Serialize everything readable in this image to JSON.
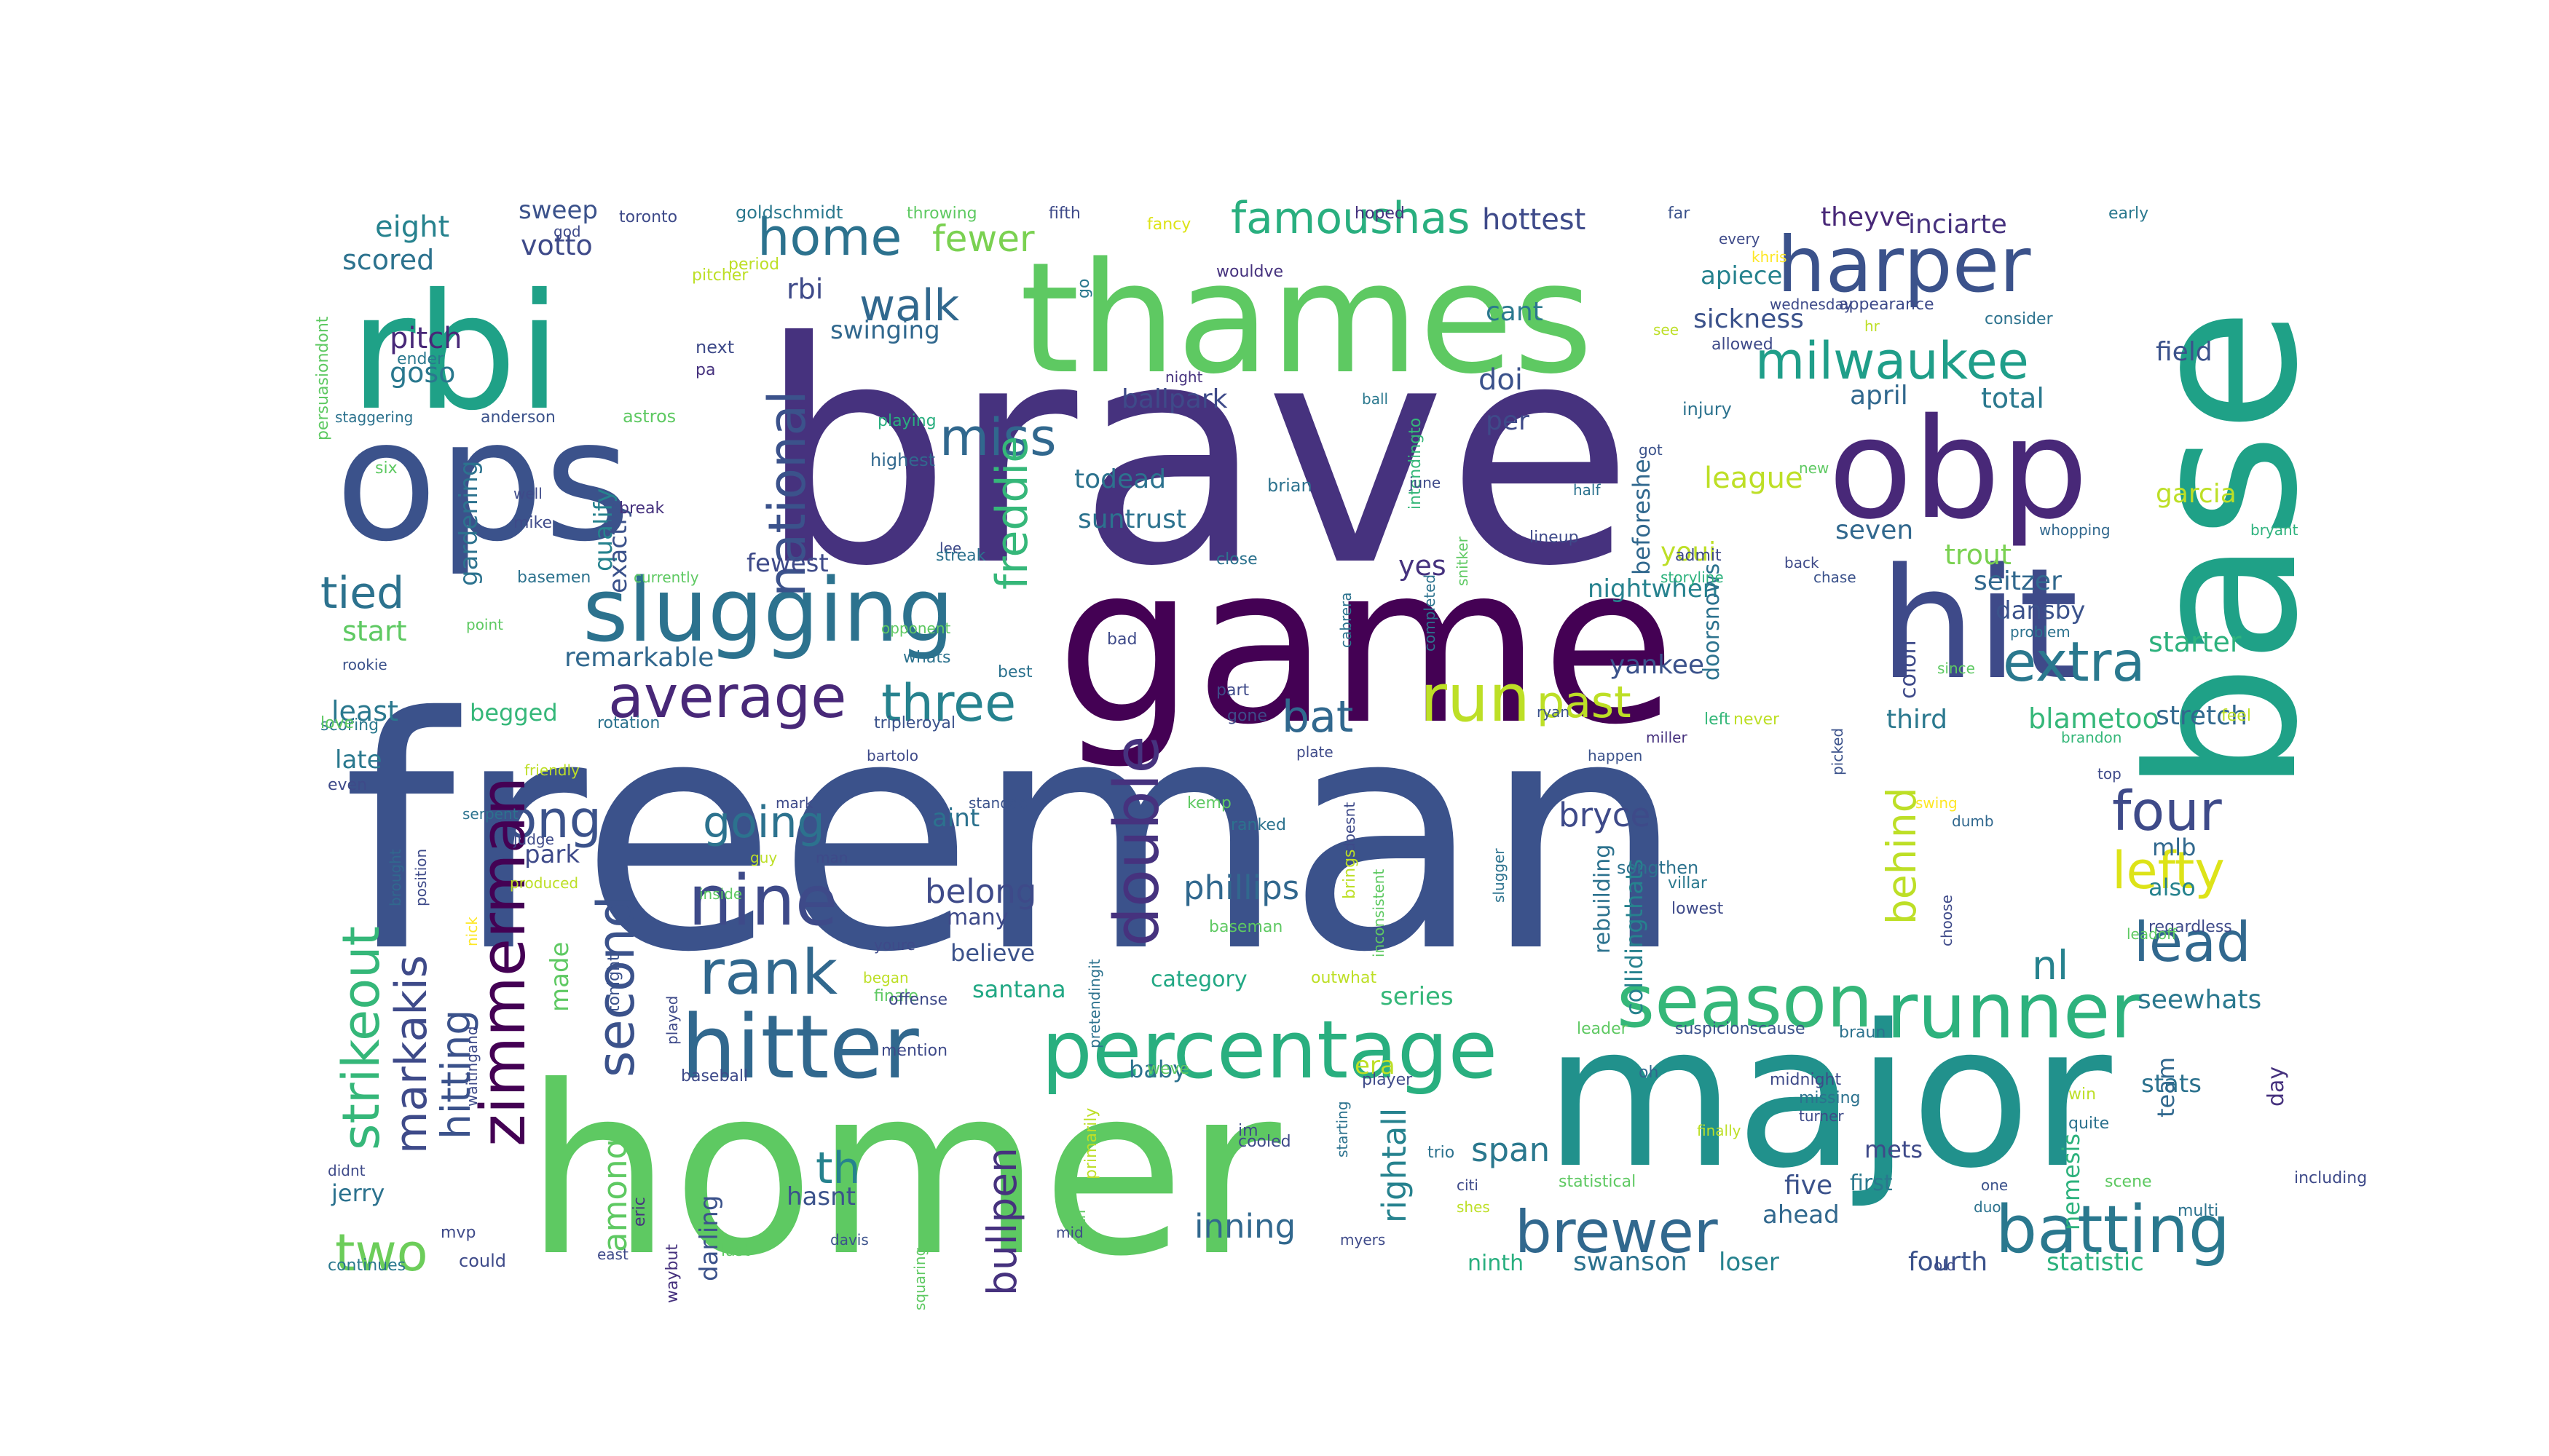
{
  "words": [
    {
      "t": "freeman",
      "c": "#3b528b"
    },
    {
      "t": "brave",
      "c": "#46327e"
    },
    {
      "t": "homer",
      "c": "#5ec962"
    },
    {
      "t": "major",
      "c": "#21918c"
    },
    {
      "t": "game",
      "c": "#440154"
    },
    {
      "t": "thames",
      "c": "#5ec962"
    },
    {
      "t": "base",
      "c": "#1fa187"
    },
    {
      "t": "ops",
      "c": "#3b528b"
    },
    {
      "t": "rbi",
      "c": "#1fa187"
    },
    {
      "t": "obp",
      "c": "#482878"
    },
    {
      "t": "hit",
      "c": "#3e4a89"
    },
    {
      "t": "harper",
      "c": "#3b528b"
    },
    {
      "t": "slugging",
      "c": "#2c728e"
    },
    {
      "t": "percentage",
      "c": "#29af7f"
    },
    {
      "t": "hitter",
      "c": "#31688e"
    },
    {
      "t": "runner",
      "c": "#2db27d"
    },
    {
      "t": "season",
      "c": "#35b779"
    },
    {
      "t": "batting",
      "c": "#2a788e"
    },
    {
      "t": "brewer",
      "c": "#31688e"
    },
    {
      "t": "nine",
      "c": "#3e4a89"
    },
    {
      "t": "rank",
      "c": "#31688e"
    },
    {
      "t": "average",
      "c": "#482878"
    },
    {
      "t": "milwaukee",
      "c": "#1f9e89"
    },
    {
      "t": "double",
      "c": "#46327e"
    },
    {
      "t": "long",
      "c": "#3b528b"
    },
    {
      "t": "run",
      "c": "#bddf26"
    },
    {
      "t": "extra",
      "c": "#2a788e"
    },
    {
      "t": "four",
      "c": "#3e4a89"
    },
    {
      "t": "lefty",
      "c": "#dde318"
    },
    {
      "t": "lead",
      "c": "#31688e"
    },
    {
      "t": "zimmerman",
      "c": "#440154"
    },
    {
      "t": "strikeout",
      "c": "#35b779"
    },
    {
      "t": "markakis",
      "c": "#3e4a89"
    },
    {
      "t": "second",
      "c": "#3b528b"
    },
    {
      "t": "national",
      "c": "#3b528b"
    },
    {
      "t": "home",
      "c": "#2c728e"
    },
    {
      "t": "walk",
      "c": "#31688e"
    },
    {
      "t": "miss",
      "c": "#31688e"
    },
    {
      "t": "three",
      "c": "#26828e"
    },
    {
      "t": "bat",
      "c": "#31688e"
    },
    {
      "t": "going",
      "c": "#2c728e"
    },
    {
      "t": "two",
      "c": "#6ccd5a"
    },
    {
      "t": "tied",
      "c": "#2c728e"
    },
    {
      "t": "past",
      "c": "#bddf26"
    },
    {
      "t": "famoushas",
      "c": "#29af7f"
    },
    {
      "t": "freddie",
      "c": "#35b779"
    },
    {
      "t": "behind",
      "c": "#bddf26"
    },
    {
      "t": "nl",
      "c": "#26828e"
    },
    {
      "t": "hitting",
      "c": "#3b528b"
    },
    {
      "t": "phillips",
      "c": "#31688e"
    },
    {
      "t": "fewer",
      "c": "#7ad151"
    },
    {
      "t": "belong",
      "c": "#3e4a89"
    },
    {
      "t": "span",
      "c": "#2a788e"
    },
    {
      "t": "inning",
      "c": "#31688e"
    },
    {
      "t": "rightall",
      "c": "#26828e"
    },
    {
      "t": "among",
      "c": "#5ec962"
    },
    {
      "t": "bryce",
      "c": "#3e4a89"
    },
    {
      "t": "th",
      "c": "#26828e"
    },
    {
      "t": "bullpen",
      "c": "#46327e"
    },
    {
      "t": "pitch",
      "c": "#482878"
    },
    {
      "t": "eight",
      "c": "#26828e"
    },
    {
      "t": "scored",
      "c": "#2c728e"
    },
    {
      "t": "sweep",
      "c": "#3b528b"
    },
    {
      "t": "votto",
      "c": "#3e4a89"
    },
    {
      "t": "hottest",
      "c": "#3e4a89"
    },
    {
      "t": "theyve",
      "c": "#482878"
    },
    {
      "t": "inciarte",
      "c": "#46327e"
    },
    {
      "t": "goso",
      "c": "#2a788e"
    },
    {
      "t": "rbi",
      "c": "#3e4a89"
    },
    {
      "t": "field",
      "c": "#3b528b"
    },
    {
      "t": "sickness",
      "c": "#3b528b"
    },
    {
      "t": "apiece",
      "c": "#26828e"
    },
    {
      "t": "swinging",
      "c": "#31688e"
    },
    {
      "t": "league",
      "c": "#bddf26"
    },
    {
      "t": "total",
      "c": "#2a788e"
    },
    {
      "t": "april",
      "c": "#31688e"
    },
    {
      "t": "garcia",
      "c": "#bddf26"
    },
    {
      "t": "doi",
      "c": "#3b528b"
    },
    {
      "t": "per",
      "c": "#3e4a89"
    },
    {
      "t": "cant",
      "c": "#2a788e"
    },
    {
      "t": "qualify",
      "c": "#26828e"
    },
    {
      "t": "ballpark",
      "c": "#3e4a89"
    },
    {
      "t": "todead",
      "c": "#2c728e"
    },
    {
      "t": "suntrust",
      "c": "#2c728e"
    },
    {
      "t": "yes",
      "c": "#46327e"
    },
    {
      "t": "seven",
      "c": "#31688e"
    },
    {
      "t": "trout",
      "c": "#7ad151"
    },
    {
      "t": "seitzer",
      "c": "#31688e"
    },
    {
      "t": "dansby",
      "c": "#3b528b"
    },
    {
      "t": "starter",
      "c": "#2db27d"
    },
    {
      "t": "stretch",
      "c": "#31688e"
    },
    {
      "t": "blametoo",
      "c": "#35b779"
    },
    {
      "t": "third",
      "c": "#2a788e"
    },
    {
      "t": "yankee",
      "c": "#3b528b"
    },
    {
      "t": "nightwhen",
      "c": "#26828e"
    },
    {
      "t": "youi",
      "c": "#bddf26"
    },
    {
      "t": "fewest",
      "c": "#3e4a89"
    },
    {
      "t": "remarkable",
      "c": "#31688e"
    },
    {
      "t": "begged",
      "c": "#35b779"
    },
    {
      "t": "least",
      "c": "#2a788e"
    },
    {
      "t": "late",
      "c": "#2a788e"
    },
    {
      "t": "park",
      "c": "#3e4a89"
    },
    {
      "t": "made",
      "c": "#5ec962"
    },
    {
      "t": "start",
      "c": "#5ec962"
    },
    {
      "t": "exactly",
      "c": "#3b528b"
    },
    {
      "t": "gardening",
      "c": "#2c728e"
    },
    {
      "t": "santana",
      "c": "#22a884"
    },
    {
      "t": "category",
      "c": "#22a884"
    },
    {
      "t": "baby",
      "c": "#2c728e"
    },
    {
      "t": "series",
      "c": "#35b779"
    },
    {
      "t": "era",
      "c": "#bddf26"
    },
    {
      "t": "aint",
      "c": "#2c728e"
    },
    {
      "t": "many",
      "c": "#3e4a89"
    },
    {
      "t": "believe",
      "c": "#3b528b"
    },
    {
      "t": "stats",
      "c": "#2c728e"
    },
    {
      "t": "also",
      "c": "#26828e"
    },
    {
      "t": "mlb",
      "c": "#31688e"
    },
    {
      "t": "seewhats",
      "c": "#2a788e"
    },
    {
      "t": "jerry",
      "c": "#2c728e"
    },
    {
      "t": "darling",
      "c": "#3b528b"
    },
    {
      "t": "hasnt",
      "c": "#3b528b"
    },
    {
      "t": "team",
      "c": "#31688e"
    },
    {
      "t": "day",
      "c": "#46327e"
    },
    {
      "t": "fourth",
      "c": "#3b528b"
    },
    {
      "t": "statistic",
      "c": "#2db27d"
    },
    {
      "t": "swanson",
      "c": "#2c728e"
    },
    {
      "t": "loser",
      "c": "#26828e"
    },
    {
      "t": "ninth",
      "c": "#29af7f"
    },
    {
      "t": "five",
      "c": "#3b528b"
    },
    {
      "t": "ahead",
      "c": "#31688e"
    },
    {
      "t": "first",
      "c": "#2a788e"
    },
    {
      "t": "mets",
      "c": "#3e4a89"
    },
    {
      "t": "nemesis",
      "c": "#2db27d"
    },
    {
      "t": "doorsnows",
      "c": "#2c728e"
    },
    {
      "t": "colon",
      "c": "#3e4a89"
    },
    {
      "t": "rebuilding",
      "c": "#2c728e"
    },
    {
      "t": "collidingthats",
      "c": "#26828e"
    },
    {
      "t": "beforeshe",
      "c": "#31688e"
    },
    {
      "t": "toronto",
      "c": "#3e4a89"
    },
    {
      "t": "goldschmidt",
      "c": "#2a788e"
    },
    {
      "t": "throwing",
      "c": "#5ec962"
    },
    {
      "t": "fifth",
      "c": "#3e4a89"
    },
    {
      "t": "fancy",
      "c": "#dde318"
    },
    {
      "t": "hoped",
      "c": "#46327e"
    },
    {
      "t": "far",
      "c": "#3b528b"
    },
    {
      "t": "early",
      "c": "#2a788e"
    },
    {
      "t": "god",
      "c": "#3e4a89"
    },
    {
      "t": "period",
      "c": "#bddf26"
    },
    {
      "t": "wouldve",
      "c": "#46327e"
    },
    {
      "t": "every",
      "c": "#3e4a89"
    },
    {
      "t": "khris",
      "c": "#fde725"
    },
    {
      "t": "wednesday",
      "c": "#3e4a89"
    },
    {
      "t": "appearance",
      "c": "#3e4a89"
    },
    {
      "t": "consider",
      "c": "#2c728e"
    },
    {
      "t": "pitcher",
      "c": "#bddf26"
    },
    {
      "t": "persuasiondont",
      "c": "#5ec962"
    },
    {
      "t": "go",
      "c": "#2a788e"
    },
    {
      "t": "see",
      "c": "#bddf26"
    },
    {
      "t": "allowed",
      "c": "#3e4a89"
    },
    {
      "t": "hr",
      "c": "#bddf26"
    },
    {
      "t": "next",
      "c": "#3e4a89"
    },
    {
      "t": "pa",
      "c": "#46327e"
    },
    {
      "t": "ender",
      "c": "#2a788e"
    },
    {
      "t": "night",
      "c": "#46327e"
    },
    {
      "t": "staggering",
      "c": "#2c728e"
    },
    {
      "t": "anderson",
      "c": "#3b528b"
    },
    {
      "t": "astros",
      "c": "#5ec962"
    },
    {
      "t": "injury",
      "c": "#2c728e"
    },
    {
      "t": "playing",
      "c": "#29af7f"
    },
    {
      "t": "highest",
      "c": "#31688e"
    },
    {
      "t": "ball",
      "c": "#2a788e"
    },
    {
      "t": "got",
      "c": "#3b528b"
    },
    {
      "t": "new",
      "c": "#5ec962"
    },
    {
      "t": "six",
      "c": "#5ec962"
    },
    {
      "t": "mike",
      "c": "#3e4a89"
    },
    {
      "t": "well",
      "c": "#3e4a89"
    },
    {
      "t": "brian",
      "c": "#2c728e"
    },
    {
      "t": "intendingto",
      "c": "#35b779"
    },
    {
      "t": "june",
      "c": "#3e4a89"
    },
    {
      "t": "half",
      "c": "#2c728e"
    },
    {
      "t": "break",
      "c": "#46327e"
    },
    {
      "t": "lee",
      "c": "#3e4a89"
    },
    {
      "t": "lineup",
      "c": "#3e4a89"
    },
    {
      "t": "whopping",
      "c": "#31688e"
    },
    {
      "t": "bryant",
      "c": "#2db27d"
    },
    {
      "t": "basemen",
      "c": "#2c728e"
    },
    {
      "t": "currently",
      "c": "#5ec962"
    },
    {
      "t": "streak",
      "c": "#2c728e"
    },
    {
      "t": "close",
      "c": "#2c728e"
    },
    {
      "t": "snitker",
      "c": "#5ec962"
    },
    {
      "t": "storyline",
      "c": "#2db27d"
    },
    {
      "t": "admit",
      "c": "#3e4a89"
    },
    {
      "t": "back",
      "c": "#3e4a89"
    },
    {
      "t": "chase",
      "c": "#3b528b"
    },
    {
      "t": "point",
      "c": "#5ec962"
    },
    {
      "t": "opponent",
      "c": "#5ec962"
    },
    {
      "t": "bad",
      "c": "#3e4a89"
    },
    {
      "t": "cabrera",
      "c": "#2c728e"
    },
    {
      "t": "completed",
      "c": "#2c728e"
    },
    {
      "t": "problem",
      "c": "#2c728e"
    },
    {
      "t": "since",
      "c": "#5ec962"
    },
    {
      "t": "rookie",
      "c": "#3b528b"
    },
    {
      "t": "whats",
      "c": "#2c728e"
    },
    {
      "t": "best",
      "c": "#2c728e"
    },
    {
      "t": "scoring",
      "c": "#2a788e"
    },
    {
      "t": "love",
      "c": "#5ec962"
    },
    {
      "t": "rotation",
      "c": "#2c728e"
    },
    {
      "t": "tripleroyal",
      "c": "#3b528b"
    },
    {
      "t": "part",
      "c": "#3e4a89"
    },
    {
      "t": "gone",
      "c": "#3e4a89"
    },
    {
      "t": "ryan",
      "c": "#3b528b"
    },
    {
      "t": "left",
      "c": "#35b779"
    },
    {
      "t": "never",
      "c": "#bddf26"
    },
    {
      "t": "brandon",
      "c": "#35b779"
    },
    {
      "t": "feel",
      "c": "#bddf26"
    },
    {
      "t": "miller",
      "c": "#46327e"
    },
    {
      "t": "happen",
      "c": "#3b528b"
    },
    {
      "t": "even",
      "c": "#3e4a89"
    },
    {
      "t": "friendly",
      "c": "#bddf26"
    },
    {
      "t": "bartolo",
      "c": "#3e4a89"
    },
    {
      "t": "plate",
      "c": "#3e4a89"
    },
    {
      "t": "picked",
      "c": "#3b528b"
    },
    {
      "t": "top",
      "c": "#3e4a89"
    },
    {
      "t": "serpent",
      "c": "#2c728e"
    },
    {
      "t": "mark",
      "c": "#3e4a89"
    },
    {
      "t": "standdo",
      "c": "#3b528b"
    },
    {
      "t": "kemp",
      "c": "#5ec962"
    },
    {
      "t": "ranked",
      "c": "#2c728e"
    },
    {
      "t": "doesnt",
      "c": "#3e4a89"
    },
    {
      "t": "swing",
      "c": "#fde725"
    },
    {
      "t": "dumb",
      "c": "#31688e"
    },
    {
      "t": "brought",
      "c": "#31688e"
    },
    {
      "t": "position",
      "c": "#3e4a89"
    },
    {
      "t": "judge",
      "c": "#3e4a89"
    },
    {
      "t": "guy",
      "c": "#bddf26"
    },
    {
      "t": "inside",
      "c": "#5ec962"
    },
    {
      "t": "man",
      "c": "#3e4a89"
    },
    {
      "t": "nick",
      "c": "#fde725"
    },
    {
      "t": "produced",
      "c": "#bddf26"
    },
    {
      "t": "tonight",
      "c": "#3b528b"
    },
    {
      "t": "inconsistent",
      "c": "#5ec962"
    },
    {
      "t": "brings",
      "c": "#bddf26"
    },
    {
      "t": "slugger",
      "c": "#2c728e"
    },
    {
      "t": "songthen",
      "c": "#2c728e"
    },
    {
      "t": "villar",
      "c": "#2a788e"
    },
    {
      "t": "lowest",
      "c": "#3e4a89"
    },
    {
      "t": "choose",
      "c": "#3e4a89"
    },
    {
      "t": "regardless",
      "c": "#3e4a89"
    },
    {
      "t": "leadoff",
      "c": "#5ec962"
    },
    {
      "t": "baseman",
      "c": "#5ec962"
    },
    {
      "t": "outwhat",
      "c": "#bddf26"
    },
    {
      "t": "youre",
      "c": "#3e4a89"
    },
    {
      "t": "began",
      "c": "#bddf26"
    },
    {
      "t": "finale",
      "c": "#5ec962"
    },
    {
      "t": "played",
      "c": "#3e4a89"
    },
    {
      "t": "offense",
      "c": "#3e4a89"
    },
    {
      "t": "mention",
      "c": "#3e4a89"
    },
    {
      "t": "leader",
      "c": "#5ec962"
    },
    {
      "t": "suspicionscause",
      "c": "#3b528b"
    },
    {
      "t": "braun",
      "c": "#2c728e"
    },
    {
      "t": "waitingand",
      "c": "#3e4a89"
    },
    {
      "t": "baseball",
      "c": "#3e4a89"
    },
    {
      "t": "pretendingit",
      "c": "#2c728e"
    },
    {
      "t": "weve",
      "c": "#5ec962"
    },
    {
      "t": "player",
      "c": "#3e4a89"
    },
    {
      "t": "oh",
      "c": "#31688e"
    },
    {
      "t": "midnight",
      "c": "#3e4a89"
    },
    {
      "t": "missing",
      "c": "#2c728e"
    },
    {
      "t": "win",
      "c": "#bddf26"
    },
    {
      "t": "quite",
      "c": "#2c728e"
    },
    {
      "t": "didnt",
      "c": "#3e4a89"
    },
    {
      "t": "mvp",
      "c": "#3e4a89"
    },
    {
      "t": "eric",
      "c": "#46327e"
    },
    {
      "t": "primarily",
      "c": "#bddf26"
    },
    {
      "t": "cooled",
      "c": "#3e4a89"
    },
    {
      "t": "im",
      "c": "#3e4a89"
    },
    {
      "t": "starting",
      "c": "#2c728e"
    },
    {
      "t": "trio",
      "c": "#2c728e"
    },
    {
      "t": "statistical",
      "c": "#5ec962"
    },
    {
      "t": "finally",
      "c": "#bddf26"
    },
    {
      "t": "scene",
      "c": "#5ec962"
    },
    {
      "t": "multi",
      "c": "#2c728e"
    },
    {
      "t": "including",
      "c": "#3e4a89"
    },
    {
      "t": "turner",
      "c": "#3e4a89"
    },
    {
      "t": "one",
      "c": "#3b528b"
    },
    {
      "t": "duo",
      "c": "#2c728e"
    },
    {
      "t": "citi",
      "c": "#3e4a89"
    },
    {
      "t": "shes",
      "c": "#bddf26"
    },
    {
      "t": "davis",
      "c": "#3b528b"
    },
    {
      "t": "sixth",
      "c": "#5ec962"
    },
    {
      "t": "squaring",
      "c": "#5ec962"
    },
    {
      "t": "mid",
      "c": "#3e4a89"
    },
    {
      "t": "myers",
      "c": "#3e4a89"
    },
    {
      "t": "continues",
      "c": "#2a788e"
    },
    {
      "t": "could",
      "c": "#3e4a89"
    },
    {
      "t": "east",
      "c": "#3e4a89"
    },
    {
      "t": "waybut",
      "c": "#46327e"
    },
    {
      "t": "last",
      "c": "#5ec962"
    },
    {
      "t": "old",
      "c": "#3e4a89"
    }
  ]
}
